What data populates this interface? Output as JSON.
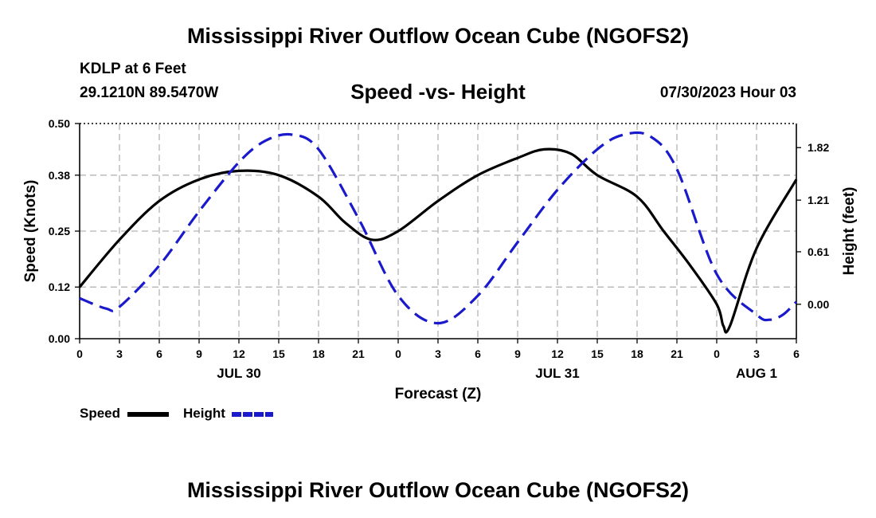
{
  "page": {
    "top_title": "Mississippi River Outflow Ocean Cube (NGOFS2)",
    "bottom_title": "Mississippi River Outflow Ocean Cube (NGOFS2)",
    "station": "KDLP at 6 Feet",
    "coords": "29.1210N  89.5470W",
    "datetime": "07/30/2023 Hour 03"
  },
  "legend": {
    "speed_label": "Speed",
    "height_label": "Height"
  },
  "colors": {
    "speed": "#000000",
    "height": "#1a1acc",
    "grid": "#b4b4b4"
  },
  "chart_data": {
    "type": "line",
    "title": "Speed -vs- Height",
    "xlabel": "Forecast (Z)",
    "ylabel_left": "Speed (Knots)",
    "ylabel_right": "Height (feet)",
    "x_unit": "hours since JUL 30 00Z",
    "xlim": [
      0,
      54
    ],
    "ylim_left": [
      0,
      0.5
    ],
    "ylim_right": [
      -0.4,
      2.1
    ],
    "left_ticks": [
      0.0,
      0.12,
      0.25,
      0.38,
      0.5
    ],
    "left_tick_labels": [
      "0.00",
      "0.12",
      "0.25",
      "0.38",
      "0.50"
    ],
    "right_ticks": [
      0.0,
      0.61,
      1.21,
      1.82
    ],
    "right_tick_labels": [
      "0.00",
      "0.61",
      "1.21",
      "1.82"
    ],
    "x_ticks": [
      0,
      3,
      6,
      9,
      12,
      15,
      18,
      21,
      24,
      27,
      30,
      33,
      36,
      39,
      42,
      45,
      48,
      51,
      54
    ],
    "x_tick_labels": [
      "0",
      "3",
      "6",
      "9",
      "12",
      "15",
      "18",
      "21",
      "0",
      "3",
      "6",
      "9",
      "12",
      "15",
      "18",
      "21",
      "0",
      "3",
      "6"
    ],
    "date_labels": [
      {
        "x": 12,
        "label": "JUL 30"
      },
      {
        "x": 36,
        "label": "JUL 31"
      },
      {
        "x": 51,
        "label": "AUG 1"
      }
    ],
    "series": [
      {
        "name": "Speed",
        "axis": "left",
        "style": "solid",
        "x": [
          0,
          3,
          6,
          9,
          12,
          15,
          18,
          20,
          22,
          24,
          27,
          30,
          33,
          35,
          37,
          39,
          42,
          44,
          46,
          48,
          48.5,
          49,
          51,
          54
        ],
        "values": [
          0.12,
          0.23,
          0.32,
          0.37,
          0.39,
          0.38,
          0.33,
          0.27,
          0.23,
          0.25,
          0.32,
          0.38,
          0.42,
          0.44,
          0.43,
          0.38,
          0.33,
          0.25,
          0.17,
          0.08,
          0.03,
          0.03,
          0.21,
          0.37
        ]
      },
      {
        "name": "Height",
        "axis": "right",
        "style": "dashed",
        "x": [
          0,
          2,
          3,
          6,
          9,
          12,
          14,
          16,
          18,
          21,
          24,
          27,
          30,
          33,
          36,
          39,
          41,
          43,
          45,
          48,
          51,
          52,
          53,
          54
        ],
        "values": [
          0.07,
          -0.05,
          -0.03,
          0.45,
          1.08,
          1.65,
          1.9,
          1.97,
          1.8,
          1.0,
          0.1,
          -0.22,
          0.1,
          0.72,
          1.33,
          1.8,
          1.97,
          1.95,
          1.57,
          0.35,
          -0.12,
          -0.18,
          -0.12,
          0.03
        ]
      }
    ]
  }
}
